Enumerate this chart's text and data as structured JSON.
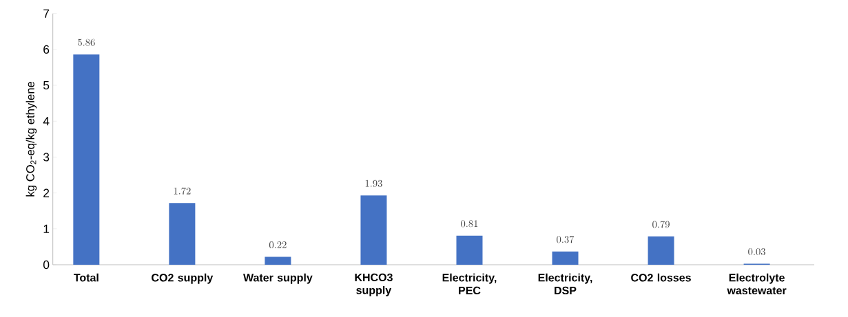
{
  "chart_data": {
    "type": "bar",
    "ylabel": "kg CO$_{2}$-eq/kg ethylene",
    "categories": [
      "Total",
      "CO2 supply",
      "Water supply",
      "KHCO3 supply",
      "Electricity, PEC",
      "Electricity, DSP",
      "CO2 losses",
      "Electrolyte wastewater"
    ],
    "values": [
      5.86,
      1.72,
      0.22,
      1.93,
      0.81,
      0.37,
      0.79,
      0.03
    ],
    "color": "#4472c4",
    "ylim": [
      0,
      7
    ],
    "yticks": [
      0,
      1,
      2,
      3,
      4,
      5,
      6,
      7
    ],
    "data_labels": true
  }
}
